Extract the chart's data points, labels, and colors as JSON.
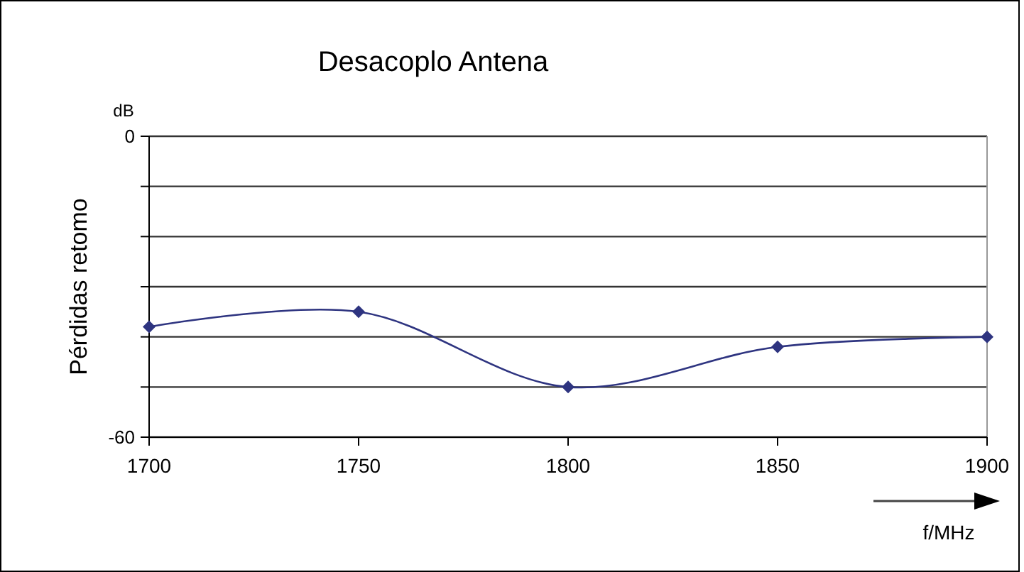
{
  "chart_data": {
    "type": "line",
    "title": "Desacoplo Antena",
    "xlabel": "f/MHz",
    "ylabel": "Pérdidas retomo",
    "annotations": [
      "dB"
    ],
    "x": [
      1700,
      1750,
      1800,
      1850,
      1900
    ],
    "series": [
      {
        "color": "#2e3480",
        "values": [
          -38,
          -35,
          -50,
          -42,
          -40
        ]
      }
    ],
    "xlim": [
      1700,
      1900
    ],
    "xticks": [
      1700,
      1750,
      1800,
      1850,
      1900
    ],
    "ylim": [
      -60,
      0
    ],
    "yticks": [
      -60,
      {
        "value": -50,
        "label": null
      },
      {
        "value": -40,
        "label": null
      },
      {
        "value": -30,
        "label": null
      },
      {
        "value": -20,
        "label": null
      },
      {
        "value": -10,
        "label": null
      },
      0
    ],
    "grid": "y",
    "marker": "diamond",
    "line_style": "solid"
  }
}
